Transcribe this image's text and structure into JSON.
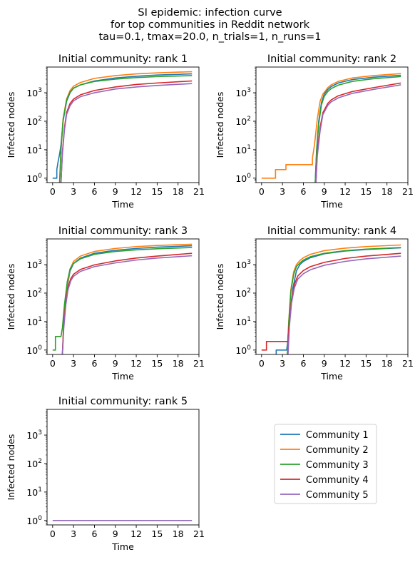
{
  "figure": {
    "suptitle": [
      "SI epidemic: infection curve",
      "for top communities in Reddit network",
      "tau=0.1, tmax=20.0, n_trials=1, n_runs=1"
    ]
  },
  "legend": {
    "entries": [
      "Community 1",
      "Community 2",
      "Community 3",
      "Community 4",
      "Community 5"
    ]
  },
  "colors": {
    "Community 1": "#1f77b4",
    "Community 2": "#ff7f0e",
    "Community 3": "#2ca02c",
    "Community 4": "#d62728",
    "Community 5": "#9467bd"
  },
  "chart_data": [
    {
      "type": "line",
      "title": "Initial community: rank 1",
      "xlabel": "Time",
      "ylabel": "Infected nodes",
      "xlim": [
        -0.8,
        21
      ],
      "ylim": [
        0.7,
        8000
      ],
      "yscale": "log",
      "xticks": [
        0,
        3,
        6,
        9,
        12,
        15,
        18,
        21
      ],
      "yticks": [
        "10^0",
        "10^1",
        "10^2",
        "10^3"
      ],
      "series": [
        {
          "name": "Community 1",
          "x": [
            0,
            0.6,
            0.6,
            0.8,
            1.0,
            1.2,
            1.5,
            2,
            2.5,
            3,
            4,
            6,
            9,
            12,
            15,
            20
          ],
          "y": [
            1,
            1,
            2,
            4,
            7,
            15,
            100,
            500,
            1000,
            1450,
            1900,
            2600,
            3300,
            3800,
            4200,
            4600
          ]
        },
        {
          "name": "Community 2",
          "x": [
            1.0,
            1.2,
            1.5,
            2,
            2.5,
            3,
            4,
            6,
            9,
            12,
            15,
            20
          ],
          "y": [
            0.7,
            10,
            120,
            600,
            1200,
            1700,
            2300,
            3200,
            4000,
            4600,
            5000,
            5500
          ]
        },
        {
          "name": "Community 3",
          "x": [
            1.0,
            1.2,
            1.5,
            2,
            2.5,
            3,
            4,
            6,
            9,
            12,
            15,
            20
          ],
          "y": [
            0.7,
            10,
            110,
            550,
            1050,
            1450,
            1900,
            2500,
            3000,
            3400,
            3700,
            4000
          ]
        },
        {
          "name": "Community 4",
          "x": [
            1.2,
            1.4,
            1.7,
            2,
            2.5,
            3,
            4,
            6,
            9,
            12,
            15,
            20
          ],
          "y": [
            0.7,
            8,
            60,
            200,
            420,
            600,
            850,
            1200,
            1600,
            1950,
            2200,
            2600
          ]
        },
        {
          "name": "Community 5",
          "x": [
            1.2,
            1.4,
            1.7,
            2,
            2.5,
            3,
            4,
            6,
            9,
            12,
            15,
            20
          ],
          "y": [
            0.7,
            7,
            50,
            170,
            350,
            520,
            730,
            1000,
            1350,
            1600,
            1800,
            2100
          ]
        }
      ]
    },
    {
      "type": "line",
      "title": "Initial community: rank 2",
      "xlabel": "Time",
      "ylabel": "Infected nodes",
      "xlim": [
        -0.8,
        21
      ],
      "ylim": [
        0.7,
        8000
      ],
      "yscale": "log",
      "xticks": [
        0,
        3,
        6,
        9,
        12,
        15,
        18,
        21
      ],
      "yticks": [
        "10^0",
        "10^1",
        "10^2",
        "10^3"
      ],
      "series": [
        {
          "name": "Community 1",
          "x": [
            7.7,
            7.9,
            8.2,
            8.6,
            9,
            9.5,
            10,
            11,
            13,
            16,
            20
          ],
          "y": [
            0.7,
            10,
            100,
            450,
            900,
            1300,
            1650,
            2200,
            2900,
            3500,
            4100
          ]
        },
        {
          "name": "Community 2",
          "x": [
            0,
            2,
            2,
            3.2,
            3.2,
            3.5,
            3.5,
            7.3,
            7.3,
            7.6,
            8.0,
            8.4,
            8.8,
            9.5,
            10,
            11,
            13,
            16,
            20
          ],
          "y": [
            1,
            1,
            2,
            2,
            2,
            2,
            3,
            3,
            5,
            15,
            120,
            500,
            900,
            1500,
            1900,
            2500,
            3300,
            4000,
            4700
          ]
        },
        {
          "name": "Community 3",
          "x": [
            7.7,
            7.9,
            8.2,
            8.6,
            9,
            9.5,
            10,
            11,
            13,
            16,
            20
          ],
          "y": [
            0.7,
            8,
            80,
            380,
            750,
            1100,
            1400,
            1850,
            2500,
            3100,
            3700
          ]
        },
        {
          "name": "Community 4",
          "x": [
            7.8,
            8.0,
            8.4,
            8.8,
            9.5,
            10,
            11,
            13,
            16,
            20
          ],
          "y": [
            0.7,
            8,
            60,
            200,
            420,
            560,
            780,
            1100,
            1500,
            2200
          ]
        },
        {
          "name": "Community 5",
          "x": [
            7.8,
            8.0,
            8.4,
            8.8,
            9.5,
            10,
            11,
            13,
            16,
            20
          ],
          "y": [
            0.7,
            6,
            45,
            170,
            360,
            480,
            660,
            950,
            1300,
            1900
          ]
        }
      ]
    },
    {
      "type": "line",
      "title": "Initial community: rank 3",
      "xlabel": "Time",
      "ylabel": "Infected nodes",
      "xlim": [
        -0.8,
        21
      ],
      "ylim": [
        0.7,
        8000
      ],
      "yscale": "log",
      "xticks": [
        0,
        3,
        6,
        9,
        12,
        15,
        18,
        21
      ],
      "yticks": [
        "10^0",
        "10^1",
        "10^2",
        "10^3"
      ],
      "series": [
        {
          "name": "Community 1",
          "x": [
            1.4,
            1.6,
            2.0,
            2.5,
            3,
            4,
            6,
            9,
            12,
            15,
            20
          ],
          "y": [
            0.7,
            10,
            120,
            600,
            1100,
            1700,
            2500,
            3200,
            3700,
            4100,
            4600
          ]
        },
        {
          "name": "Community 2",
          "x": [
            1.4,
            1.6,
            2.0,
            2.5,
            3,
            4,
            6,
            9,
            12,
            15,
            20
          ],
          "y": [
            0.7,
            12,
            140,
            700,
            1300,
            2000,
            2900,
            3700,
            4300,
            4700,
            5200
          ]
        },
        {
          "name": "Community 3",
          "x": [
            0,
            0.4,
            0.4,
            1.2,
            1.2,
            1.4,
            1.7,
            2.1,
            2.5,
            3,
            4,
            6,
            9,
            12,
            15,
            20
          ],
          "y": [
            1,
            1,
            3,
            3,
            3,
            6,
            40,
            250,
            700,
            1100,
            1600,
            2300,
            2900,
            3300,
            3600,
            4000
          ]
        },
        {
          "name": "Community 4",
          "x": [
            1.4,
            1.6,
            1.9,
            2.2,
            2.6,
            3,
            4,
            6,
            9,
            12,
            15,
            20
          ],
          "y": [
            0.7,
            8,
            50,
            160,
            320,
            460,
            680,
            980,
            1350,
            1700,
            2000,
            2500
          ]
        },
        {
          "name": "Community 5",
          "x": [
            1.4,
            1.6,
            1.9,
            2.2,
            2.6,
            3,
            4,
            6,
            9,
            12,
            15,
            20
          ],
          "y": [
            0.7,
            6,
            40,
            130,
            270,
            390,
            580,
            850,
            1150,
            1450,
            1700,
            2050
          ]
        }
      ]
    },
    {
      "type": "line",
      "title": "Initial community: rank 4",
      "xlabel": "Time",
      "ylabel": "Infected nodes",
      "xlim": [
        -0.8,
        21
      ],
      "ylim": [
        0.7,
        8000
      ],
      "yscale": "log",
      "xticks": [
        0,
        3,
        6,
        9,
        12,
        15,
        18,
        21
      ],
      "yticks": [
        "10^0",
        "10^1",
        "10^2",
        "10^3"
      ],
      "series": [
        {
          "name": "Community 1",
          "x": [
            2.1,
            2.1,
            3.6,
            3.6,
            3.9,
            4.1,
            4.5,
            5,
            5.5,
            6,
            7,
            9,
            12,
            15,
            20
          ],
          "y": [
            0.7,
            1,
            1,
            1,
            4,
            15,
            150,
            600,
            1000,
            1300,
            1750,
            2400,
            3000,
            3400,
            3900
          ]
        },
        {
          "name": "Community 2",
          "x": [
            3.7,
            3.9,
            4.2,
            4.6,
            5,
            5.5,
            6,
            7,
            9,
            12,
            15,
            20
          ],
          "y": [
            0.7,
            10,
            130,
            550,
            1000,
            1400,
            1750,
            2300,
            3100,
            3800,
            4300,
            4900
          ]
        },
        {
          "name": "Community 3",
          "x": [
            3.7,
            3.9,
            4.2,
            4.6,
            5,
            5.5,
            6,
            7,
            9,
            12,
            15,
            20
          ],
          "y": [
            0.7,
            9,
            110,
            450,
            850,
            1150,
            1450,
            1900,
            2500,
            3100,
            3500,
            4000
          ]
        },
        {
          "name": "Community 4",
          "x": [
            0,
            0.7,
            0.7,
            3.8,
            3.8,
            4.0,
            4.3,
            4.7,
            5.2,
            6,
            7,
            9,
            12,
            15,
            20
          ],
          "y": [
            1,
            1,
            2,
            2,
            3,
            10,
            60,
            200,
            400,
            620,
            850,
            1200,
            1650,
            2000,
            2500
          ]
        },
        {
          "name": "Community 5",
          "x": [
            3.8,
            4.0,
            4.3,
            4.7,
            5.2,
            6,
            7,
            9,
            12,
            15,
            20
          ],
          "y": [
            0.7,
            7,
            45,
            150,
            310,
            480,
            660,
            950,
            1300,
            1600,
            2000
          ]
        }
      ]
    },
    {
      "type": "line",
      "title": "Initial community: rank 5",
      "xlabel": "Time",
      "ylabel": "Infected nodes",
      "xlim": [
        -0.8,
        21
      ],
      "ylim": [
        0.7,
        8000
      ],
      "yscale": "log",
      "xticks": [
        0,
        3,
        6,
        9,
        12,
        15,
        18,
        21
      ],
      "yticks": [
        "10^0",
        "10^1",
        "10^2",
        "10^3"
      ],
      "series": [
        {
          "name": "Community 5",
          "x": [
            0,
            20
          ],
          "y": [
            1,
            1
          ]
        }
      ]
    }
  ]
}
